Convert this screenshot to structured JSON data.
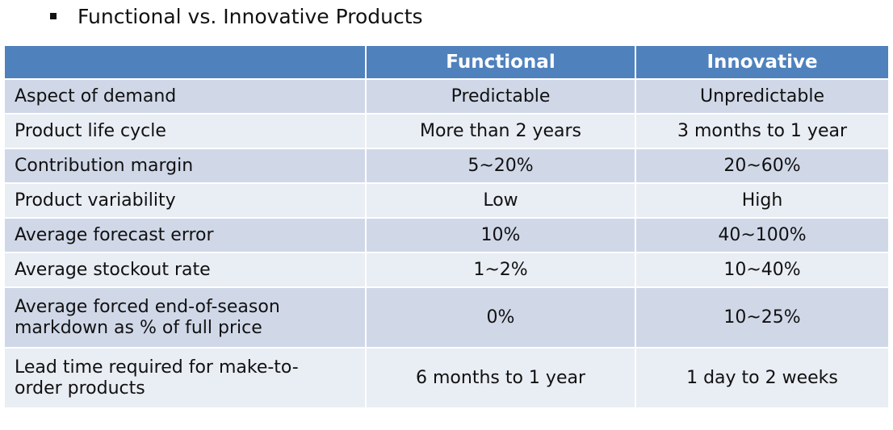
{
  "slide": {
    "title": "Functional vs. Innovative Products"
  },
  "table": {
    "headers": [
      "",
      "Functional",
      "Innovative"
    ],
    "rows": [
      {
        "label": "Aspect of demand",
        "functional": "Predictable",
        "innovative": "Unpredictable"
      },
      {
        "label": "Product life cycle",
        "functional": "More than 2 years",
        "innovative": "3 months to 1 year"
      },
      {
        "label": "Contribution margin",
        "functional": "5~20%",
        "innovative": "20~60%"
      },
      {
        "label": "Product variability",
        "functional": "Low",
        "innovative": "High"
      },
      {
        "label": "Average forecast error",
        "functional": "10%",
        "innovative": "40~100%"
      },
      {
        "label": "Average stockout rate",
        "functional": "1~2%",
        "innovative": "10~40%"
      },
      {
        "label_line1": "Average forced end-of-season",
        "label_line2": "markdown as % of full price",
        "functional": "0%",
        "innovative": "10~25%"
      },
      {
        "label_line1": "Lead time required for make-to-",
        "label_line2": "order products",
        "functional": "6 months to 1 year",
        "innovative": "1 day to 2 weeks"
      }
    ]
  },
  "colors": {
    "header_bg": "#4f81bd",
    "row_dark": "#d0d8e8",
    "row_light": "#e9edf4"
  }
}
